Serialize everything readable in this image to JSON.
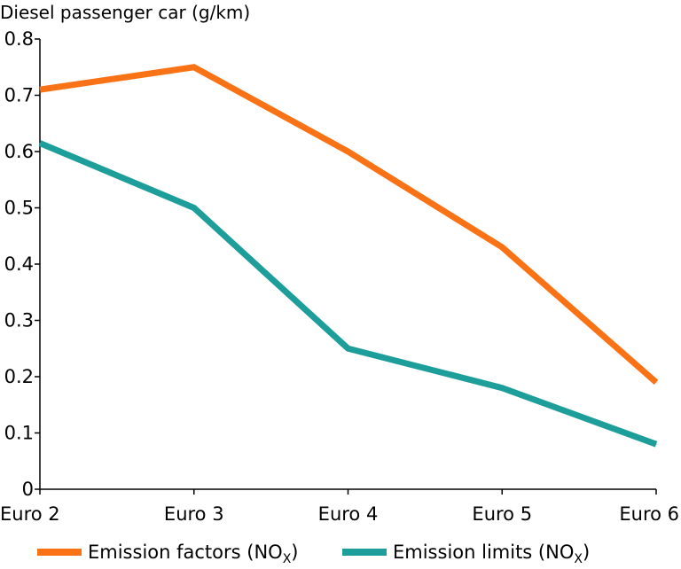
{
  "chart_data": {
    "type": "line",
    "title": "Diesel passenger car (g/km)",
    "categories": [
      "Euro 2",
      "Euro 3",
      "Euro 4",
      "Euro 5",
      "Euro 6"
    ],
    "ylim": [
      0,
      0.8
    ],
    "yticks": [
      "0",
      "0.1",
      "0.2",
      "0.3",
      "0.4",
      "0.5",
      "0.6",
      "0.7",
      "0.8"
    ],
    "grid": false,
    "legend_position": "bottom",
    "series": [
      {
        "name_main": "Emission factors (NO",
        "name_sub": "X",
        "name_tail": ")",
        "color": "#f97316",
        "values": [
          0.71,
          0.75,
          0.6,
          0.43,
          0.19
        ]
      },
      {
        "name_main": "Emission limits (NO",
        "name_sub": "X",
        "name_tail": ")",
        "color": "#1e9e9a",
        "values": [
          0.615,
          0.5,
          0.25,
          0.18,
          0.08
        ]
      }
    ]
  }
}
